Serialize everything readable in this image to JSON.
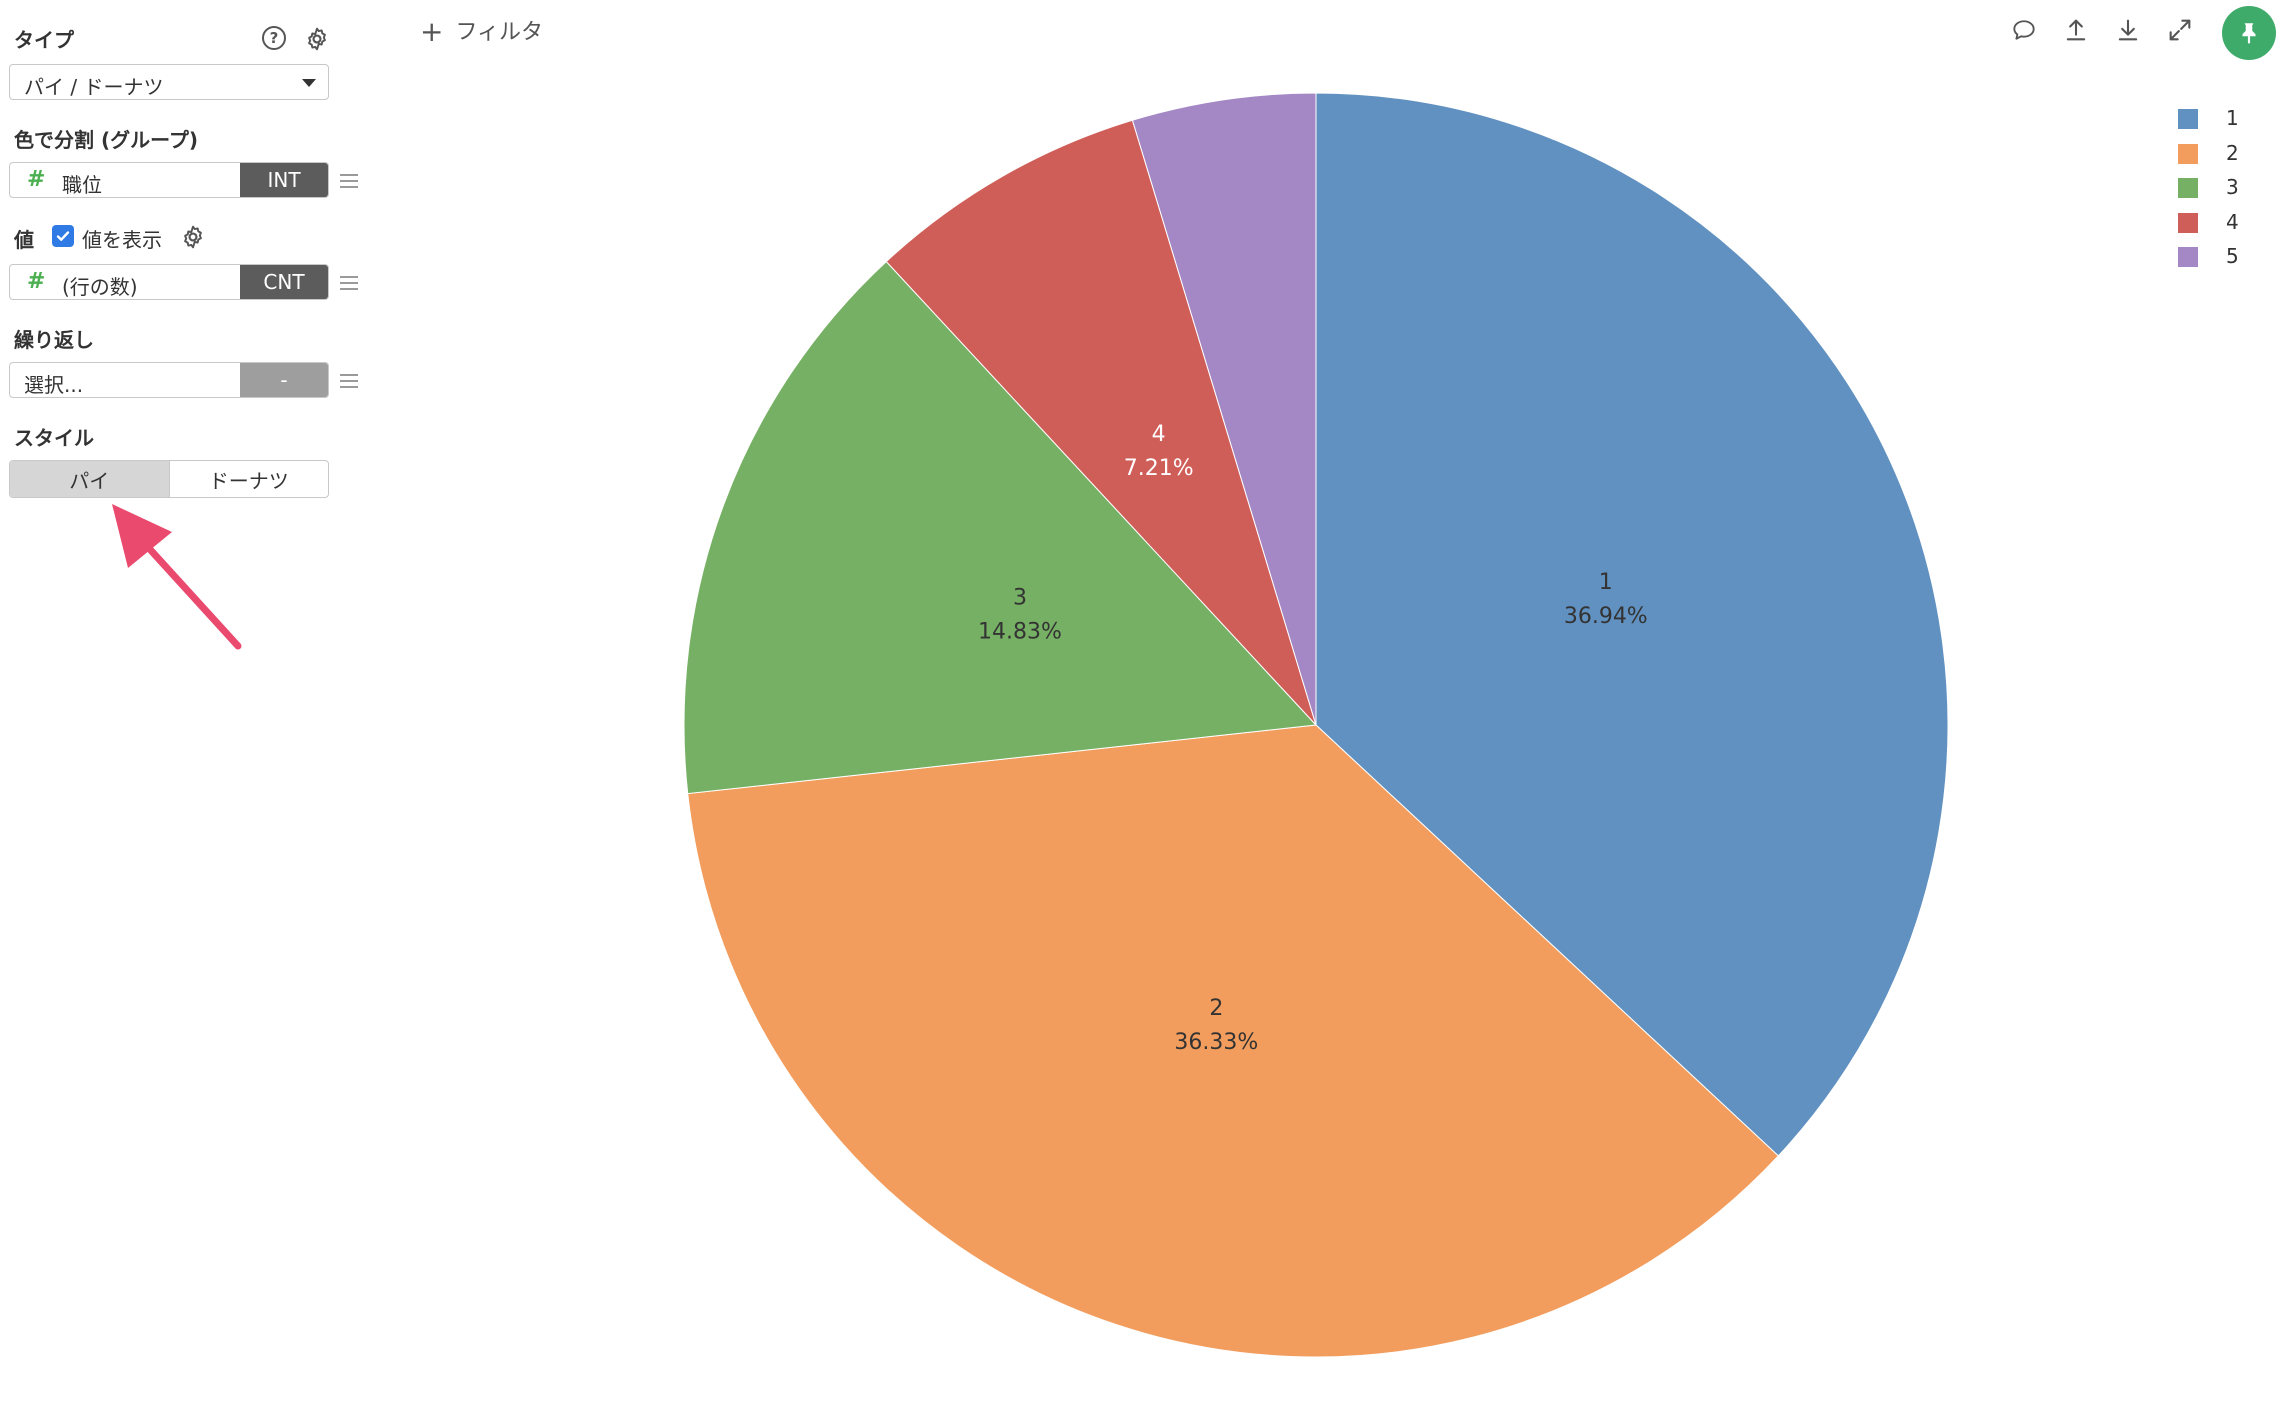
{
  "panel": {
    "type_label": "タイプ",
    "type_value": "パイ / ドーナツ",
    "color_label": "色で分割 (グループ)",
    "color_field": "職位",
    "color_field_type": "INT",
    "value_label": "値",
    "show_value_label": "値を表示",
    "show_value_checked": true,
    "value_field": "(行の数)",
    "value_agg": "CNT",
    "repeat_label": "繰り返し",
    "repeat_placeholder": "選択...",
    "repeat_badge": "-",
    "style_label": "スタイル",
    "style_options": [
      "パイ",
      "ドーナツ"
    ],
    "style_selected": "パイ",
    "field_icon": "#"
  },
  "toolbar": {
    "filter_label": "フィルタ",
    "plus": "+",
    "icons": [
      "comment-icon",
      "upload-icon",
      "download-icon",
      "expand-icon",
      "pin-icon"
    ]
  },
  "colors": {
    "accent_green": "#3fab6a",
    "annotation_arrow": "#ea4a6e",
    "checkbox_blue": "#2f7ae5"
  },
  "chart_data": {
    "type": "pie",
    "categories": [
      "1",
      "2",
      "3",
      "4",
      "5"
    ],
    "values": [
      36.94,
      36.33,
      14.83,
      7.21,
      4.69
    ],
    "labels": [
      "36.94%",
      "36.33%",
      "14.83%",
      "7.21%",
      ""
    ],
    "colors": [
      "#6191c0",
      "#f29d5d",
      "#76b064",
      "#d05e58",
      "#a488c5"
    ],
    "legend": "top-right"
  }
}
